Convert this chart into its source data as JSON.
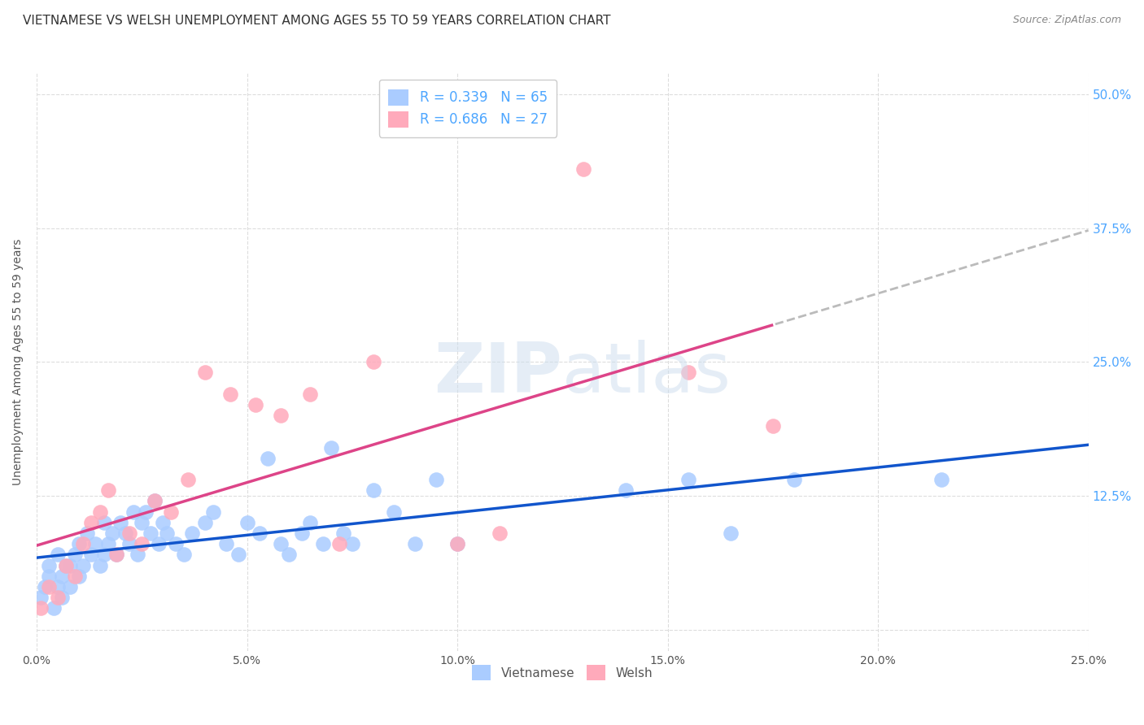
{
  "title": "VIETNAMESE VS WELSH UNEMPLOYMENT AMONG AGES 55 TO 59 YEARS CORRELATION CHART",
  "source": "Source: ZipAtlas.com",
  "xlabel": "",
  "ylabel": "Unemployment Among Ages 55 to 59 years",
  "xlim": [
    0.0,
    0.25
  ],
  "ylim": [
    -0.02,
    0.52
  ],
  "xticks": [
    0.0,
    0.05,
    0.1,
    0.15,
    0.2,
    0.25
  ],
  "yticks": [
    0.0,
    0.125,
    0.25,
    0.375,
    0.5
  ],
  "xtick_labels": [
    "0.0%",
    "5.0%",
    "10.0%",
    "15.0%",
    "20.0%",
    "25.0%"
  ],
  "ytick_labels_right": [
    "",
    "12.5%",
    "25.0%",
    "37.5%",
    "50.0%"
  ],
  "background_color": "#ffffff",
  "grid_color": "#dddddd",
  "title_color": "#333333",
  "title_fontsize": 11,
  "axis_label_color": "#555555",
  "right_tick_color": "#4da6ff",
  "legend_R_color": "#4da6ff",
  "legend_N_color": "#333333",
  "vietnamese_color": "#aaccff",
  "welsh_color": "#ffaabb",
  "line_blue_color": "#1155cc",
  "line_pink_color": "#dd4488",
  "line_dashed_color": "#bbbbbb",
  "R_vietnamese": 0.339,
  "N_vietnamese": 65,
  "R_welsh": 0.686,
  "N_welsh": 27,
  "vietnamese_x": [
    0.001,
    0.002,
    0.003,
    0.003,
    0.004,
    0.005,
    0.005,
    0.006,
    0.006,
    0.007,
    0.008,
    0.008,
    0.009,
    0.01,
    0.01,
    0.011,
    0.012,
    0.013,
    0.014,
    0.015,
    0.016,
    0.016,
    0.017,
    0.018,
    0.019,
    0.02,
    0.021,
    0.022,
    0.023,
    0.024,
    0.025,
    0.026,
    0.027,
    0.028,
    0.029,
    0.03,
    0.031,
    0.033,
    0.035,
    0.037,
    0.04,
    0.042,
    0.045,
    0.048,
    0.05,
    0.053,
    0.055,
    0.058,
    0.06,
    0.063,
    0.065,
    0.068,
    0.07,
    0.073,
    0.075,
    0.08,
    0.085,
    0.09,
    0.095,
    0.1,
    0.14,
    0.155,
    0.165,
    0.18,
    0.215
  ],
  "vietnamese_y": [
    0.03,
    0.04,
    0.05,
    0.06,
    0.02,
    0.07,
    0.04,
    0.03,
    0.05,
    0.06,
    0.04,
    0.06,
    0.07,
    0.05,
    0.08,
    0.06,
    0.09,
    0.07,
    0.08,
    0.06,
    0.07,
    0.1,
    0.08,
    0.09,
    0.07,
    0.1,
    0.09,
    0.08,
    0.11,
    0.07,
    0.1,
    0.11,
    0.09,
    0.12,
    0.08,
    0.1,
    0.09,
    0.08,
    0.07,
    0.09,
    0.1,
    0.11,
    0.08,
    0.07,
    0.1,
    0.09,
    0.16,
    0.08,
    0.07,
    0.09,
    0.1,
    0.08,
    0.17,
    0.09,
    0.08,
    0.13,
    0.11,
    0.08,
    0.14,
    0.08,
    0.13,
    0.14,
    0.09,
    0.14,
    0.14
  ],
  "welsh_x": [
    0.001,
    0.003,
    0.005,
    0.007,
    0.009,
    0.011,
    0.013,
    0.015,
    0.017,
    0.019,
    0.022,
    0.025,
    0.028,
    0.032,
    0.036,
    0.04,
    0.046,
    0.052,
    0.058,
    0.065,
    0.072,
    0.08,
    0.1,
    0.11,
    0.13,
    0.155,
    0.175
  ],
  "welsh_y": [
    0.02,
    0.04,
    0.03,
    0.06,
    0.05,
    0.08,
    0.1,
    0.11,
    0.13,
    0.07,
    0.09,
    0.08,
    0.12,
    0.11,
    0.14,
    0.24,
    0.22,
    0.21,
    0.2,
    0.22,
    0.08,
    0.25,
    0.08,
    0.09,
    0.43,
    0.24,
    0.19
  ]
}
